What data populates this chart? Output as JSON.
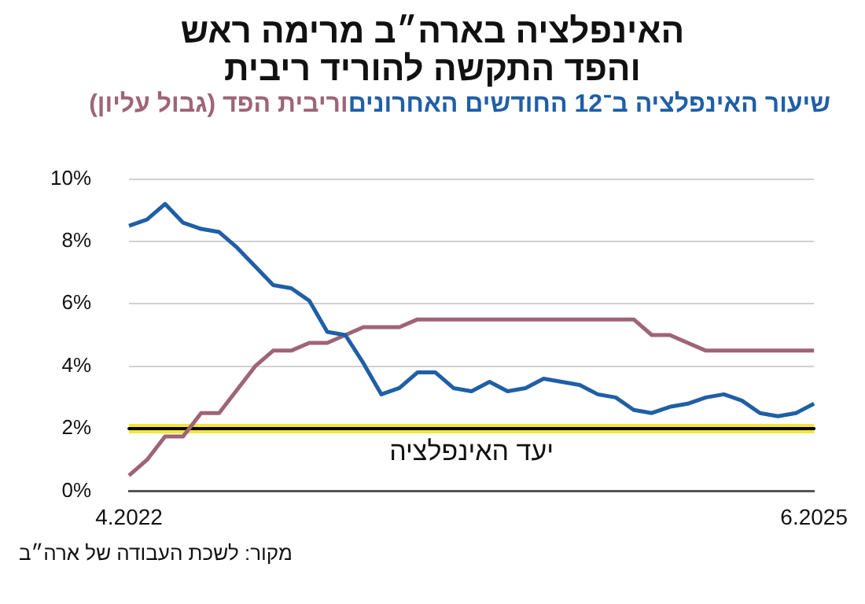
{
  "chart_data": {
    "type": "line",
    "title": "האינפלציה בארה״ב מרימה ראש\nוהפד התקשה להוריד ריבית",
    "categories": [
      "4.2022",
      null,
      null,
      null,
      null,
      null,
      null,
      null,
      null,
      null,
      null,
      null,
      null,
      null,
      null,
      null,
      null,
      null,
      null,
      null,
      null,
      null,
      null,
      null,
      null,
      null,
      null,
      null,
      null,
      null,
      null,
      null,
      null,
      null,
      null,
      null,
      null,
      null,
      "6.2025"
    ],
    "series": [
      {
        "name": "שיעור האינפלציה ב־12 החודשים האחרונים",
        "color": "#1f5fa6",
        "values": [
          8.5,
          8.7,
          9.2,
          8.6,
          8.4,
          8.3,
          7.8,
          7.2,
          6.6,
          6.5,
          6.1,
          5.1,
          5.0,
          4.1,
          3.1,
          3.3,
          3.8,
          3.8,
          3.3,
          3.2,
          3.5,
          3.2,
          3.3,
          3.6,
          3.5,
          3.4,
          3.1,
          3.0,
          2.6,
          2.5,
          2.7,
          2.8,
          3.0,
          3.1,
          2.9,
          2.5,
          2.4,
          2.5,
          2.8
        ]
      },
      {
        "name": "וריבית הפד (גבול עליון)",
        "color": "#9e6478",
        "values": [
          0.5,
          1.0,
          1.75,
          1.75,
          2.5,
          2.5,
          3.25,
          4.0,
          4.5,
          4.5,
          4.75,
          4.75,
          5.0,
          5.25,
          5.25,
          5.25,
          5.5,
          5.5,
          5.5,
          5.5,
          5.5,
          5.5,
          5.5,
          5.5,
          5.5,
          5.5,
          5.5,
          5.5,
          5.5,
          5.0,
          5.0,
          4.75,
          4.5,
          4.5,
          4.5,
          4.5,
          4.5,
          4.5,
          4.5
        ]
      }
    ],
    "ylim": [
      0,
      10
    ],
    "yticks": [
      {
        "value": 0,
        "label": "0%"
      },
      {
        "value": 2,
        "label": "2%"
      },
      {
        "value": 4,
        "label": "4%"
      },
      {
        "value": 6,
        "label": "6%"
      },
      {
        "value": 8,
        "label": "8%"
      },
      {
        "value": 10,
        "label": "10%"
      }
    ],
    "grid": "y",
    "legend": "top",
    "marker": "none",
    "line_style": "solid",
    "bands": [
      {
        "axis": "y",
        "from": 1.85,
        "to": 2.15,
        "color": "#f3e53a"
      }
    ],
    "ref_lines": [
      {
        "axis": "y",
        "value": 2,
        "label": "יעד האינפלציה",
        "color": "#000000"
      }
    ],
    "annotations": [
      "מקור: לשכת העבודה של ארה״ב"
    ]
  }
}
